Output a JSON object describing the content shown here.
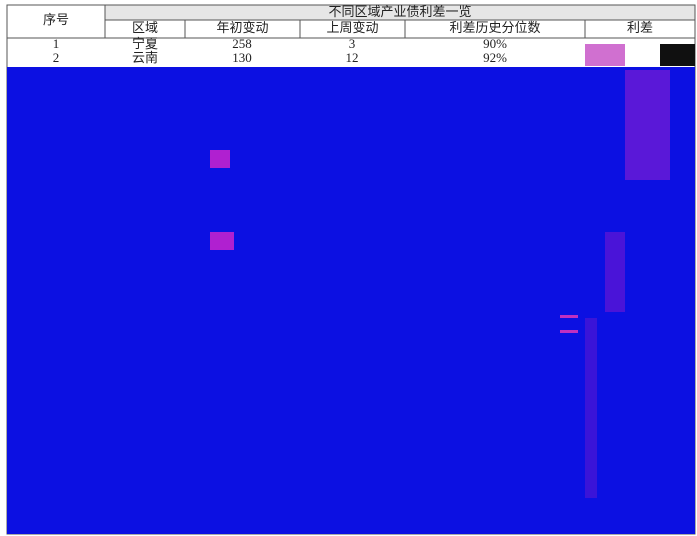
{
  "header": {
    "serial": "序号",
    "title": "不同区域产业债利差一览"
  },
  "table": {
    "columns": [
      "区域",
      "年初变动",
      "上周变动",
      "利差历史分位数",
      "利差"
    ],
    "rows": [
      [
        "1",
        "宁夏",
        "258",
        "3",
        "90%"
      ],
      [
        "2",
        "云南",
        "130",
        "12",
        "92%"
      ]
    ]
  }
}
